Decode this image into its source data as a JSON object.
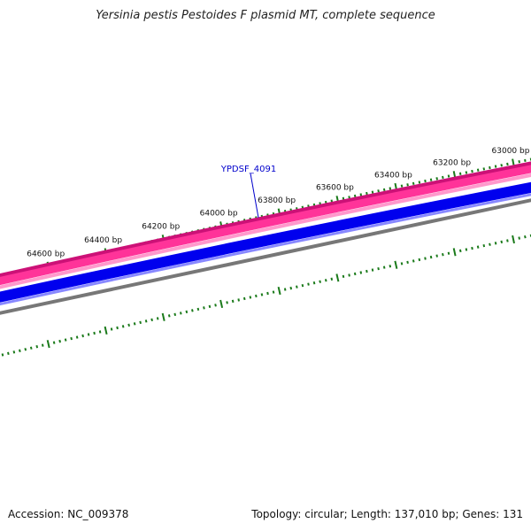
{
  "title": "Yersinia pestis Pestoides F plasmid MT, complete sequence",
  "footer": {
    "accession": "Accession: NC_009378",
    "summary": "Topology: circular; Length: 137,010 bp; Genes: 131"
  },
  "ruler": {
    "labels": [
      {
        "text": "63000 bp"
      },
      {
        "text": "63200 bp"
      },
      {
        "text": "63400 bp"
      },
      {
        "text": "63600 bp"
      },
      {
        "text": "63800 bp"
      },
      {
        "text": "64000 bp"
      },
      {
        "text": "64200 bp"
      },
      {
        "text": "64400 bp"
      },
      {
        "text": "64600 bp"
      }
    ]
  },
  "genes": [
    {
      "label": "YPDSF_4091"
    }
  ],
  "colors": {
    "ruler_tick": "#1a7a1a",
    "track_pink_dark": "#cc1177",
    "track_pink": "#ff3399",
    "track_pink_light": "#ff99cc",
    "track_blue": "#0000ee",
    "track_blue_light": "#8888ff",
    "track_gray": "#777777",
    "gene_label": "#0000cc"
  }
}
